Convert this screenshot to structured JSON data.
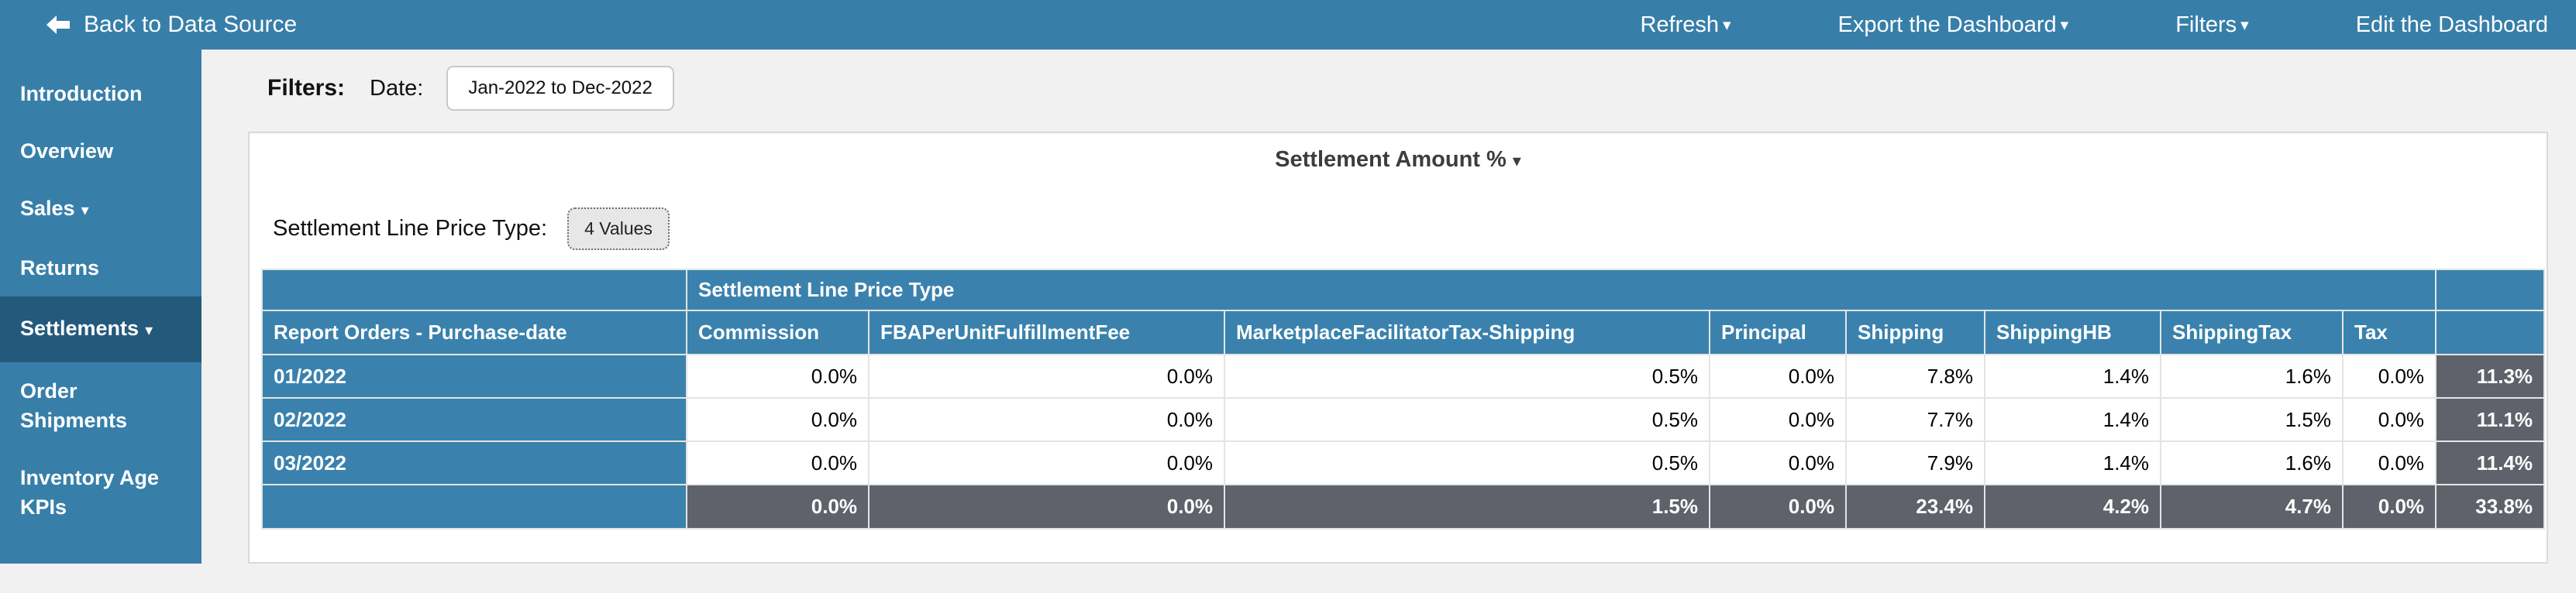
{
  "topbar": {
    "back": "Back to Data Source",
    "menu": [
      {
        "label": "Refresh",
        "caret": true
      },
      {
        "label": "Export the Dashboard",
        "caret": true
      },
      {
        "label": "Filters",
        "caret": true
      },
      {
        "label": "Edit the Dashboard",
        "caret": false
      }
    ]
  },
  "sidebar": {
    "items": [
      {
        "label": "Introduction",
        "caret": false,
        "active": false
      },
      {
        "label": "Overview",
        "caret": false,
        "active": false
      },
      {
        "label": "Sales",
        "caret": true,
        "active": false
      },
      {
        "label": "Returns",
        "caret": false,
        "active": false
      },
      {
        "label": "Settlements",
        "caret": true,
        "active": true
      },
      {
        "label": "Order Shipments",
        "caret": false,
        "active": false
      },
      {
        "label": "Inventory Age KPIs",
        "caret": false,
        "active": false
      }
    ]
  },
  "filters": {
    "label": "Filters:",
    "date_label": "Date:",
    "date_value": "Jan-2022 to Dec-2022"
  },
  "panel": {
    "title": "Settlement Amount %",
    "param_label": "Settlement Line Price Type:",
    "param_value": "4 Values"
  },
  "table": {
    "group_header": "Settlement Line Price Type",
    "row_header": "Report Orders - Purchase-date",
    "columns": [
      "Commission",
      "FBAPerUnitFulfillmentFee",
      "MarketplaceFacilitatorTax-Shipping",
      "Principal",
      "Shipping",
      "ShippingHB",
      "ShippingTax",
      "Tax"
    ],
    "rows": [
      {
        "label": "01/2022",
        "values": [
          "0.0%",
          "0.0%",
          "0.5%",
          "0.0%",
          "7.8%",
          "1.4%",
          "1.6%",
          "0.0%"
        ],
        "total": "11.3%"
      },
      {
        "label": "02/2022",
        "values": [
          "0.0%",
          "0.0%",
          "0.5%",
          "0.0%",
          "7.7%",
          "1.4%",
          "1.5%",
          "0.0%"
        ],
        "total": "11.1%"
      },
      {
        "label": "03/2022",
        "values": [
          "0.0%",
          "0.0%",
          "0.5%",
          "0.0%",
          "7.9%",
          "1.4%",
          "1.6%",
          "0.0%"
        ],
        "total": "11.4%"
      }
    ],
    "totals": {
      "values": [
        "0.0%",
        "0.0%",
        "1.5%",
        "0.0%",
        "23.4%",
        "4.2%",
        "4.7%",
        "0.0%"
      ],
      "total": "33.8%"
    }
  },
  "colors": {
    "chrome_blue": "#377fa9",
    "table_header_blue": "#3a82ad",
    "active_item_blue": "#235a7c",
    "total_gray": "#5f626b",
    "page_bg": "#f1f1f1"
  }
}
